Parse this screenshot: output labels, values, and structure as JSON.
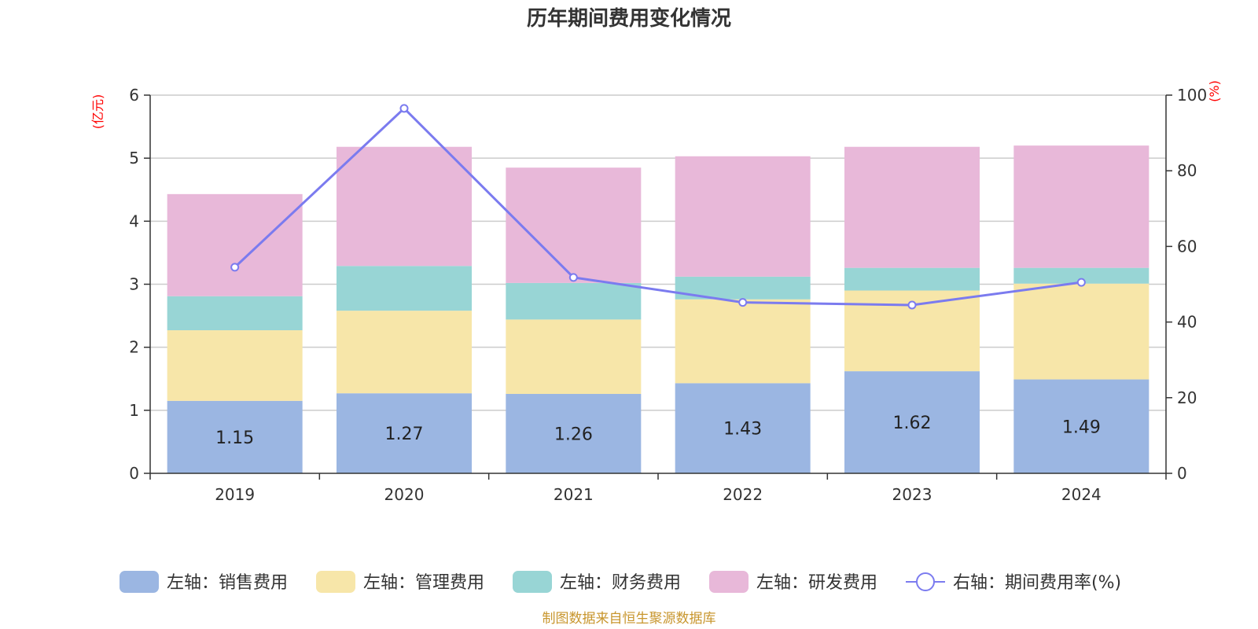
{
  "title": "历年期间费用变化情况",
  "source": "制图数据来自恒生聚源数据库",
  "chart_data": {
    "type": "bar",
    "stacked": true,
    "categories": [
      "2019",
      "2020",
      "2021",
      "2022",
      "2023",
      "2024"
    ],
    "y_left": {
      "unit": "(亿元)",
      "range": [
        0,
        6
      ],
      "ticks": [
        "0",
        "1",
        "2",
        "3",
        "4",
        "5",
        "6"
      ]
    },
    "y_right": {
      "unit": "(%)",
      "range": [
        0,
        100
      ],
      "ticks": [
        "0",
        "20",
        "40",
        "60",
        "80",
        "100"
      ]
    },
    "grid": true,
    "legend_position": "bottom",
    "series": [
      {
        "name": "左轴：销售费用",
        "type": "bar",
        "axis": "left",
        "color": "#9bb6e2",
        "values": [
          1.15,
          1.27,
          1.26,
          1.43,
          1.62,
          1.49
        ],
        "labels": [
          "1.15",
          "1.27",
          "1.26",
          "1.43",
          "1.62",
          "1.49"
        ]
      },
      {
        "name": "左轴：管理费用",
        "type": "bar",
        "axis": "left",
        "color": "#f7e6a9",
        "values": [
          1.12,
          1.31,
          1.18,
          1.33,
          1.28,
          1.52
        ]
      },
      {
        "name": "左轴：财务费用",
        "type": "bar",
        "axis": "left",
        "color": "#98d5d5",
        "values": [
          0.54,
          0.71,
          0.58,
          0.36,
          0.36,
          0.25
        ]
      },
      {
        "name": "左轴：研发费用",
        "type": "bar",
        "axis": "left",
        "color": "#e8b8d9",
        "values": [
          1.62,
          1.89,
          1.83,
          1.91,
          1.92,
          1.94
        ]
      },
      {
        "name": "右轴：期间费用率(%)",
        "type": "line",
        "axis": "right",
        "color": "#7b7bef",
        "values": [
          54.5,
          96.5,
          51.8,
          45.2,
          44.5,
          50.5
        ]
      }
    ]
  }
}
